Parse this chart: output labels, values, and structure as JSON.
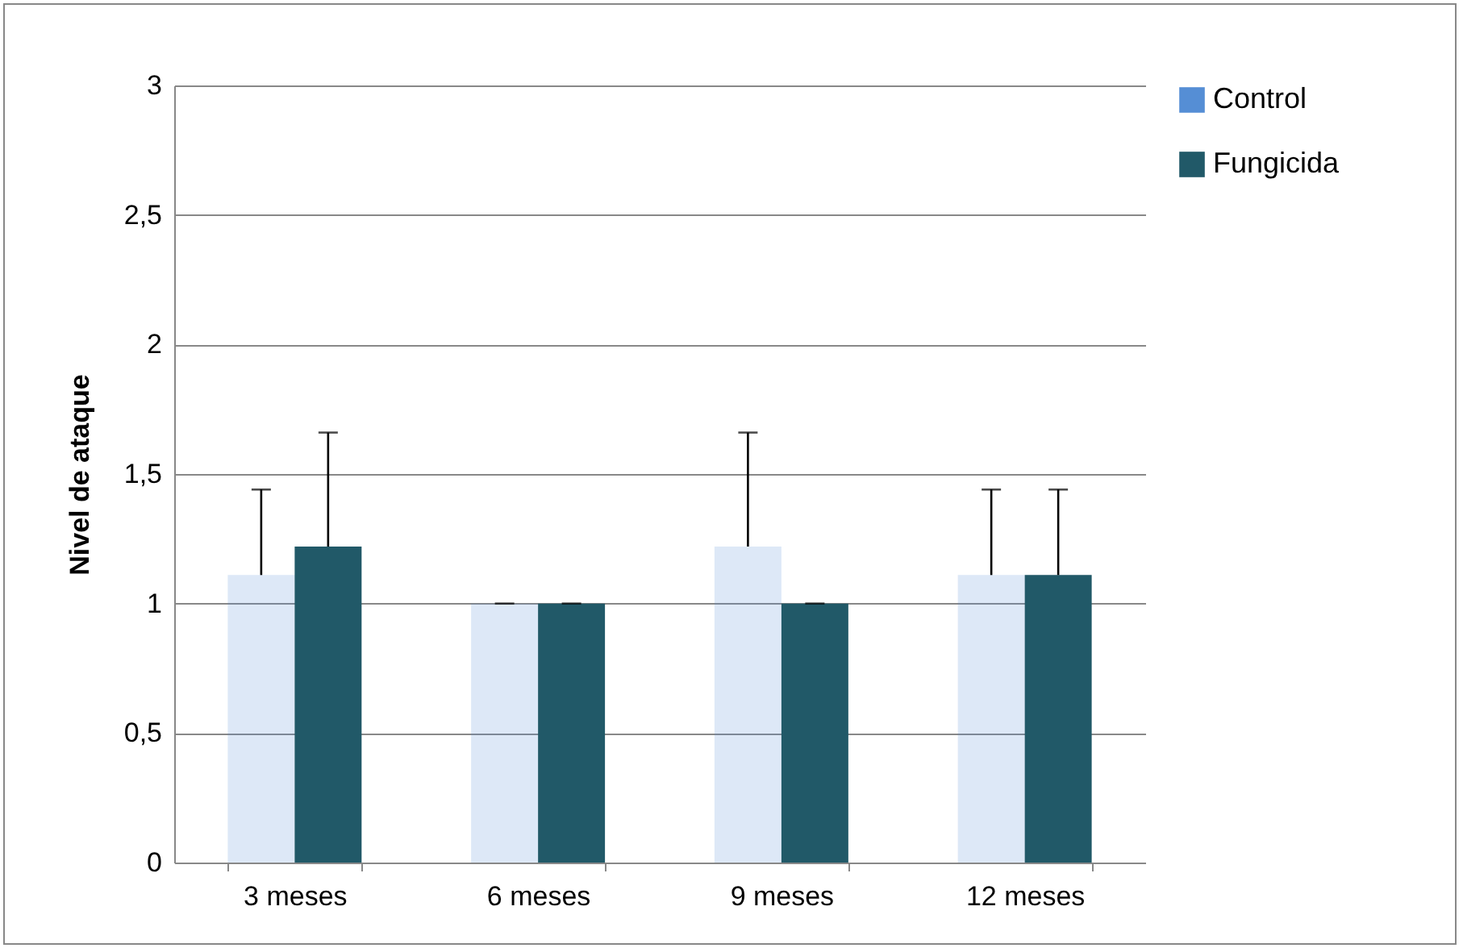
{
  "chart_data": {
    "type": "bar",
    "ylabel": "Nivel de ataque",
    "categories": [
      "3 meses",
      "6 meses",
      "9 meses",
      "12 meses"
    ],
    "series": [
      {
        "name": "Control",
        "color": "#558ed5",
        "values": [
          1.11,
          1.0,
          1.22,
          1.11
        ],
        "errors": [
          [
            1.11,
            1.44
          ],
          [
            1.0,
            1.0
          ],
          [
            1.22,
            1.66
          ],
          [
            1.11,
            1.44
          ]
        ]
      },
      {
        "name": "Fungicida",
        "color": "#215968",
        "values": [
          1.22,
          1.0,
          1.0,
          1.11
        ],
        "errors": [
          [
            1.22,
            1.66
          ],
          [
            1.0,
            1.0
          ],
          [
            1.0,
            1.0
          ],
          [
            1.11,
            1.44
          ]
        ]
      }
    ],
    "ylim": [
      0,
      3
    ],
    "yticks": [
      {
        "value": 0,
        "label": "0"
      },
      {
        "value": 0.5,
        "label": "0,5"
      },
      {
        "value": 1,
        "label": "1"
      },
      {
        "value": 1.5,
        "label": "1,5"
      },
      {
        "value": 2,
        "label": "2"
      },
      {
        "value": 2.5,
        "label": "2,5"
      },
      {
        "value": 3,
        "label": "3"
      }
    ],
    "grid": "y",
    "legend": "right"
  }
}
